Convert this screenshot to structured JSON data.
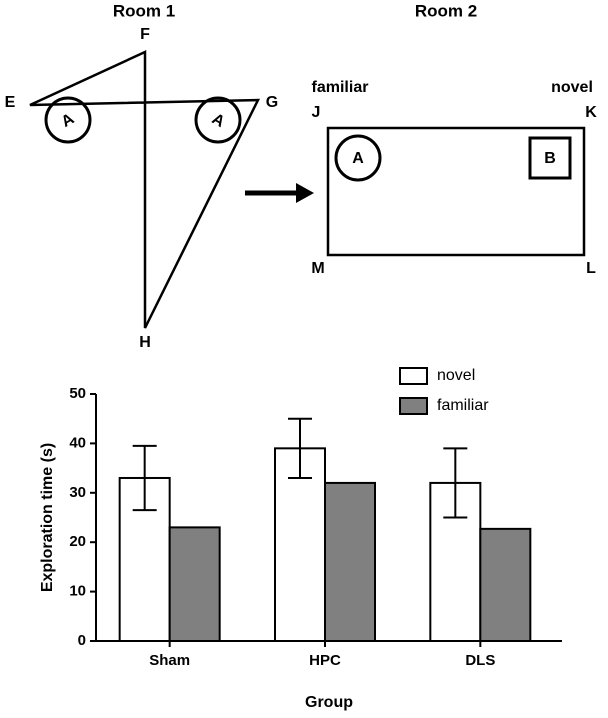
{
  "diagram": {
    "room1": {
      "title": "Room 1",
      "corners": [
        "F",
        "E",
        "G",
        "H"
      ],
      "objects": [
        "A",
        "A"
      ]
    },
    "room2": {
      "title": "Room 2",
      "sides": [
        "familiar",
        "novel"
      ],
      "corners": [
        "J",
        "K",
        "M",
        "L"
      ],
      "objects": [
        "A",
        "B"
      ]
    }
  },
  "chart_data": {
    "type": "bar",
    "categories": [
      "Sham",
      "HPC",
      "DLS"
    ],
    "series": [
      {
        "name": "novel",
        "color": "#ffffff",
        "values": [
          33,
          39,
          32
        ],
        "errors": [
          6.5,
          6,
          7
        ]
      },
      {
        "name": "familiar",
        "color": "#808080",
        "values": [
          23,
          32,
          22.7
        ]
      }
    ],
    "xlabel": "Group",
    "ylabel": "Exploration time (s)",
    "ylim": [
      0,
      50
    ],
    "yticks": [
      0,
      10,
      20,
      30,
      40,
      50
    ],
    "legend": "top-right"
  }
}
